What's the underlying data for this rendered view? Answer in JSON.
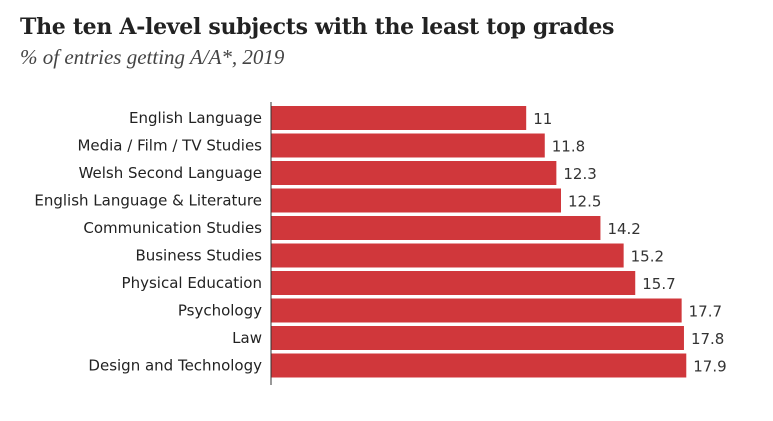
{
  "header": {
    "title": "The ten A-level subjects with the least top grades",
    "subtitle": "% of entries getting A/A*, 2019"
  },
  "colors": {
    "bar": "#d0373b",
    "axis": "#333333"
  },
  "chart_data": {
    "type": "bar",
    "orientation": "horizontal",
    "categories": [
      "English Language",
      "Media / Film / TV Studies",
      "Welsh Second Language",
      "English Language & Literature",
      "Communication Studies",
      "Business Studies",
      "Physical Education",
      "Psychology",
      "Law",
      "Design and Technology"
    ],
    "values": [
      11,
      11.8,
      12.3,
      12.5,
      14.2,
      15.2,
      15.7,
      17.7,
      17.8,
      17.9
    ],
    "value_labels": [
      "11",
      "11.8",
      "12.3",
      "12.5",
      "14.2",
      "15.2",
      "15.7",
      "17.7",
      "17.8",
      "17.9"
    ],
    "title": "The ten A-level subjects with the least top grades",
    "subtitle": "% of entries getting A/A*, 2019",
    "xlim": [
      0,
      20
    ],
    "grid": false,
    "legend": "none"
  }
}
